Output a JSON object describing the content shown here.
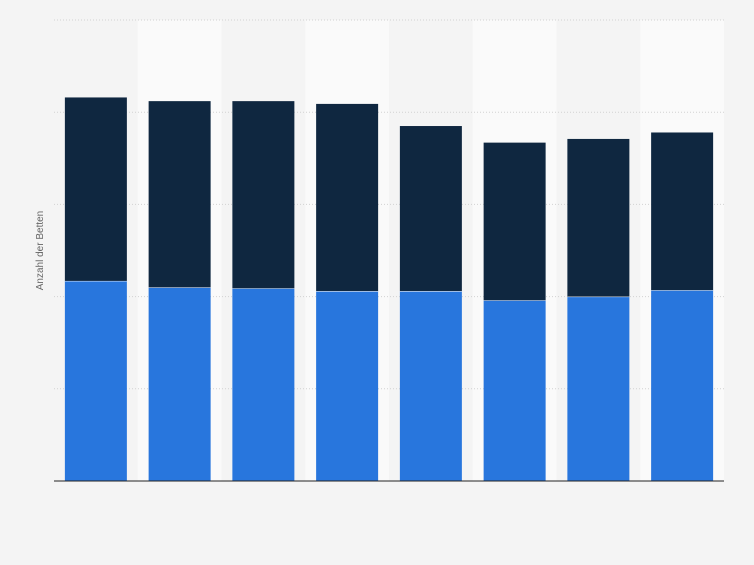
{
  "chart_data": {
    "type": "bar",
    "stacked": true,
    "ylabel": "Anzahl der Betten",
    "ylim": [
      0,
      500
    ],
    "grid": true,
    "legend": "none",
    "categories": [
      "",
      "",
      "",
      "",
      "",
      "",
      "",
      ""
    ],
    "series": [
      {
        "color": "#2876dd",
        "values": [
          217,
          210,
          209,
          206,
          206,
          196,
          200,
          207
        ]
      },
      {
        "color": "#0f2740",
        "values": [
          199,
          202,
          203,
          203,
          179,
          171,
          171,
          171
        ]
      }
    ]
  }
}
